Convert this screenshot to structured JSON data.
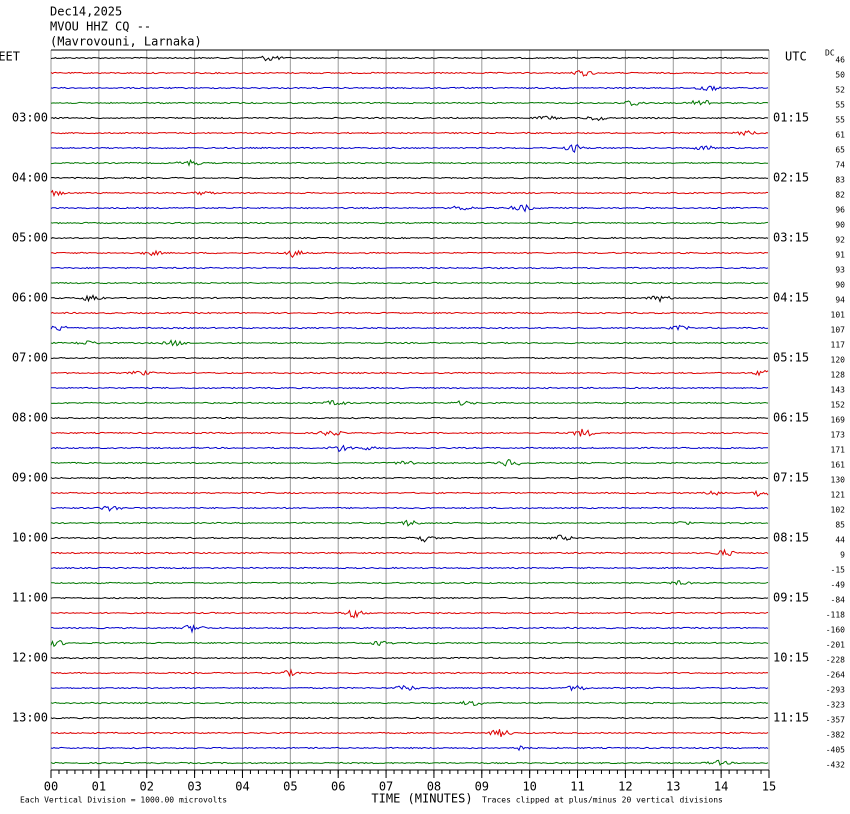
{
  "chart_data": {
    "type": "helicorder",
    "title_lines": [
      "Dec14,2025",
      "MVOU HHZ CQ --",
      "(Mavrovouni, Larnaka)"
    ],
    "left_axis_title": "EET",
    "right_axis_title": "UTC",
    "dc_title": "DC",
    "trace_colors": [
      "#000000",
      "#dd0000",
      "#0000cc",
      "#007700"
    ],
    "left_labels": [
      null,
      null,
      null,
      null,
      "03:00",
      null,
      null,
      null,
      "04:00",
      null,
      null,
      null,
      "05:00",
      null,
      null,
      null,
      "06:00",
      null,
      null,
      null,
      "07:00",
      null,
      null,
      null,
      "08:00",
      null,
      null,
      null,
      "09:00",
      null,
      null,
      null,
      "10:00",
      null,
      null,
      null,
      "11:00",
      null,
      null,
      null,
      "12:00",
      null,
      null,
      null,
      "13:00",
      null,
      null,
      null
    ],
    "right_labels": [
      null,
      null,
      null,
      null,
      "01:15",
      null,
      null,
      null,
      "02:15",
      null,
      null,
      null,
      "03:15",
      null,
      null,
      null,
      "04:15",
      null,
      null,
      null,
      "05:15",
      null,
      null,
      null,
      "06:15",
      null,
      null,
      null,
      "07:15",
      null,
      null,
      null,
      "08:15",
      null,
      null,
      null,
      "09:15",
      null,
      null,
      null,
      "10:15",
      null,
      null,
      null,
      "11:15",
      null,
      null,
      null
    ],
    "dc_values": [
      46,
      50,
      52,
      55,
      55,
      61,
      65,
      74,
      83,
      82,
      96,
      90,
      92,
      91,
      93,
      90,
      94,
      101,
      107,
      117,
      120,
      128,
      143,
      152,
      169,
      173,
      171,
      161,
      130,
      121,
      102,
      85,
      44,
      9,
      -15,
      -49,
      -84,
      -118,
      -160,
      -201,
      -228,
      -264,
      -293,
      -323,
      -357,
      -382,
      -405,
      -432
    ],
    "xlim": [
      0,
      15
    ],
    "xticks": [
      {
        "value": 0,
        "label": "00"
      },
      {
        "value": 1,
        "label": "01"
      },
      {
        "value": 2,
        "label": "02"
      },
      {
        "value": 3,
        "label": "03"
      },
      {
        "value": 4,
        "label": "04"
      },
      {
        "value": 5,
        "label": "05"
      },
      {
        "value": 6,
        "label": "06"
      },
      {
        "value": 7,
        "label": "07"
      },
      {
        "value": 8,
        "label": "08"
      },
      {
        "value": 9,
        "label": "09"
      },
      10,
      11,
      12,
      13,
      14,
      15
    ],
    "xlabel": "TIME (MINUTES)",
    "footer_left": "Each Vertical Division = 1000.00 microvolts",
    "footer_right": "Traces clipped at plus/minus 20 vertical divisions"
  }
}
